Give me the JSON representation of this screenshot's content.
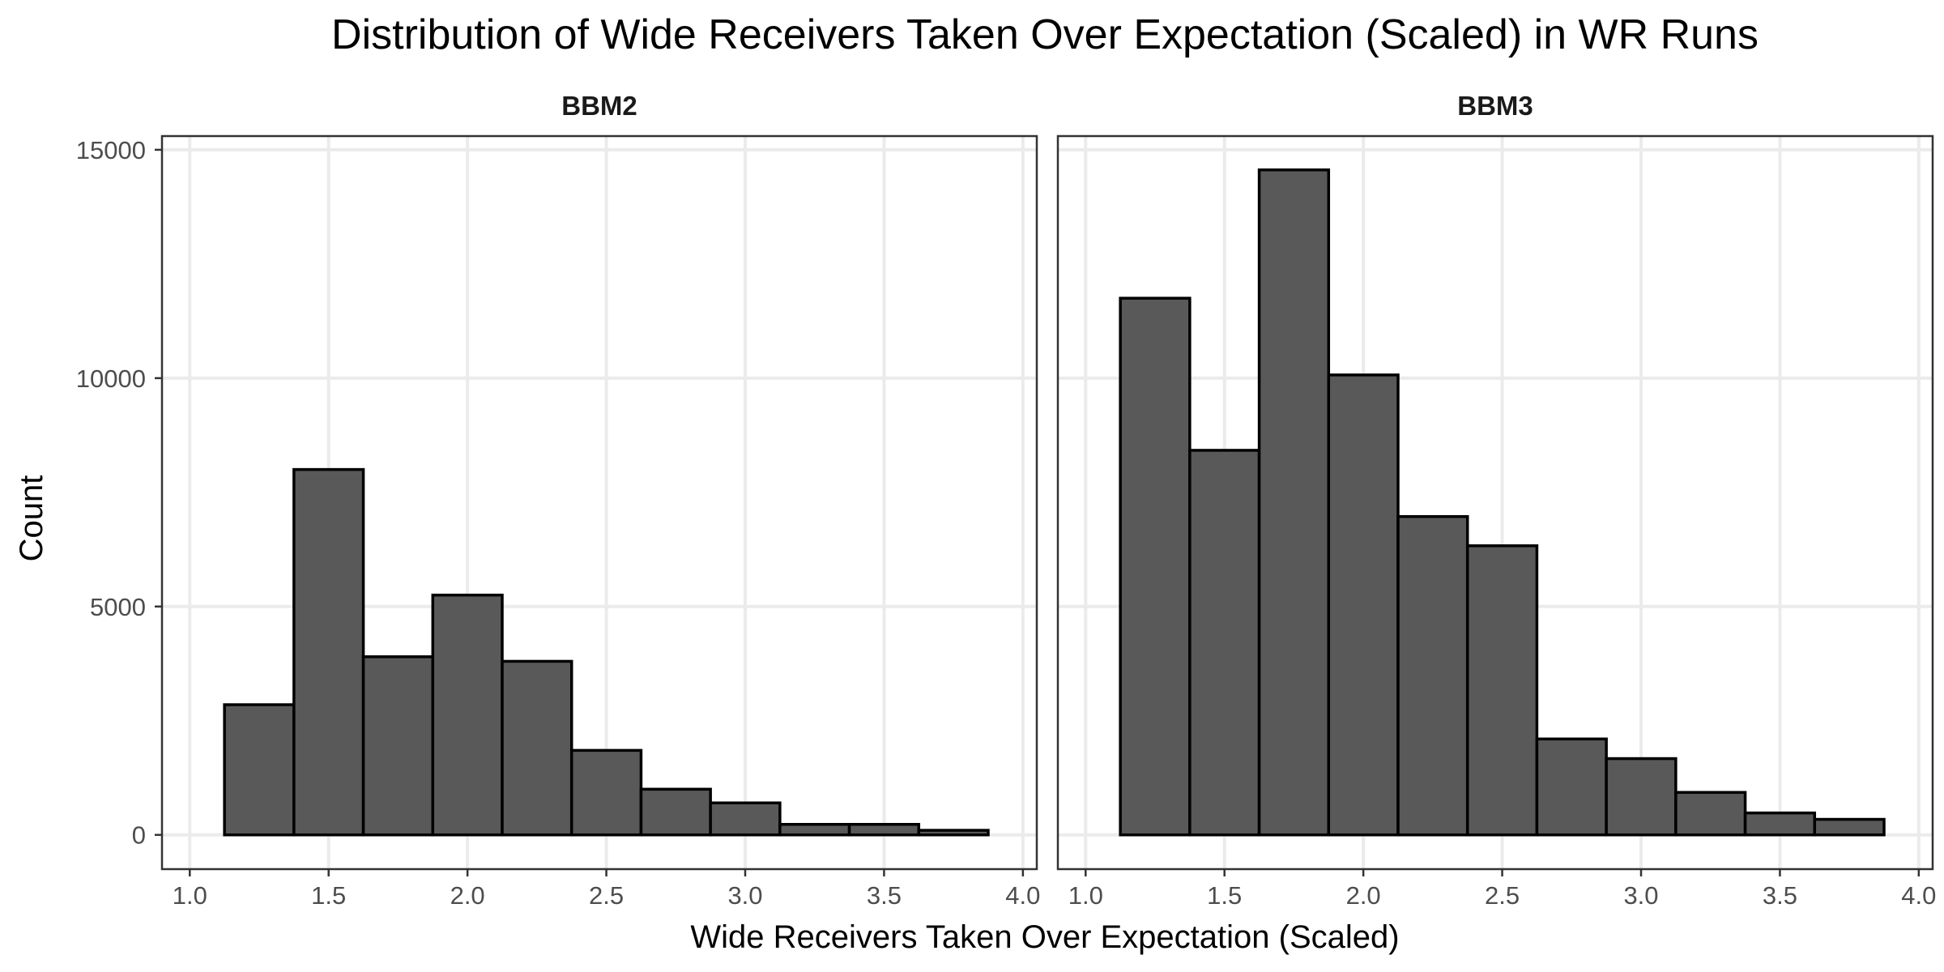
{
  "chart_data": {
    "type": "bar",
    "title": "Distribution of Wide Receivers Taken Over Expectation (Scaled) in WR Runs",
    "xlabel": "Wide Receivers Taken Over Expectation (Scaled)",
    "ylabel": "Count",
    "xlim": [
      0.9,
      4.05
    ],
    "ylim": [
      -750,
      15300
    ],
    "x_ticks": [
      "1.0",
      "1.5",
      "2.0",
      "2.5",
      "3.0",
      "3.5",
      "4.0"
    ],
    "y_ticks": [
      "0",
      "5000",
      "10000",
      "15000"
    ],
    "bin_width": 0.25,
    "bin_centers": [
      1.25,
      1.5,
      1.75,
      2.0,
      2.25,
      2.5,
      2.75,
      3.0,
      3.25,
      3.5,
      3.75
    ],
    "grid": true,
    "legend": "none",
    "bar_fill": "#595959",
    "bar_outline": "#000000",
    "panels": [
      {
        "name": "BBM2",
        "values": [
          2850,
          8000,
          3900,
          5250,
          3800,
          1850,
          1000,
          700,
          230,
          230,
          100
        ]
      },
      {
        "name": "BBM3",
        "values": [
          11750,
          8420,
          14560,
          10070,
          6970,
          6330,
          2100,
          1670,
          930,
          480,
          340
        ]
      }
    ]
  }
}
